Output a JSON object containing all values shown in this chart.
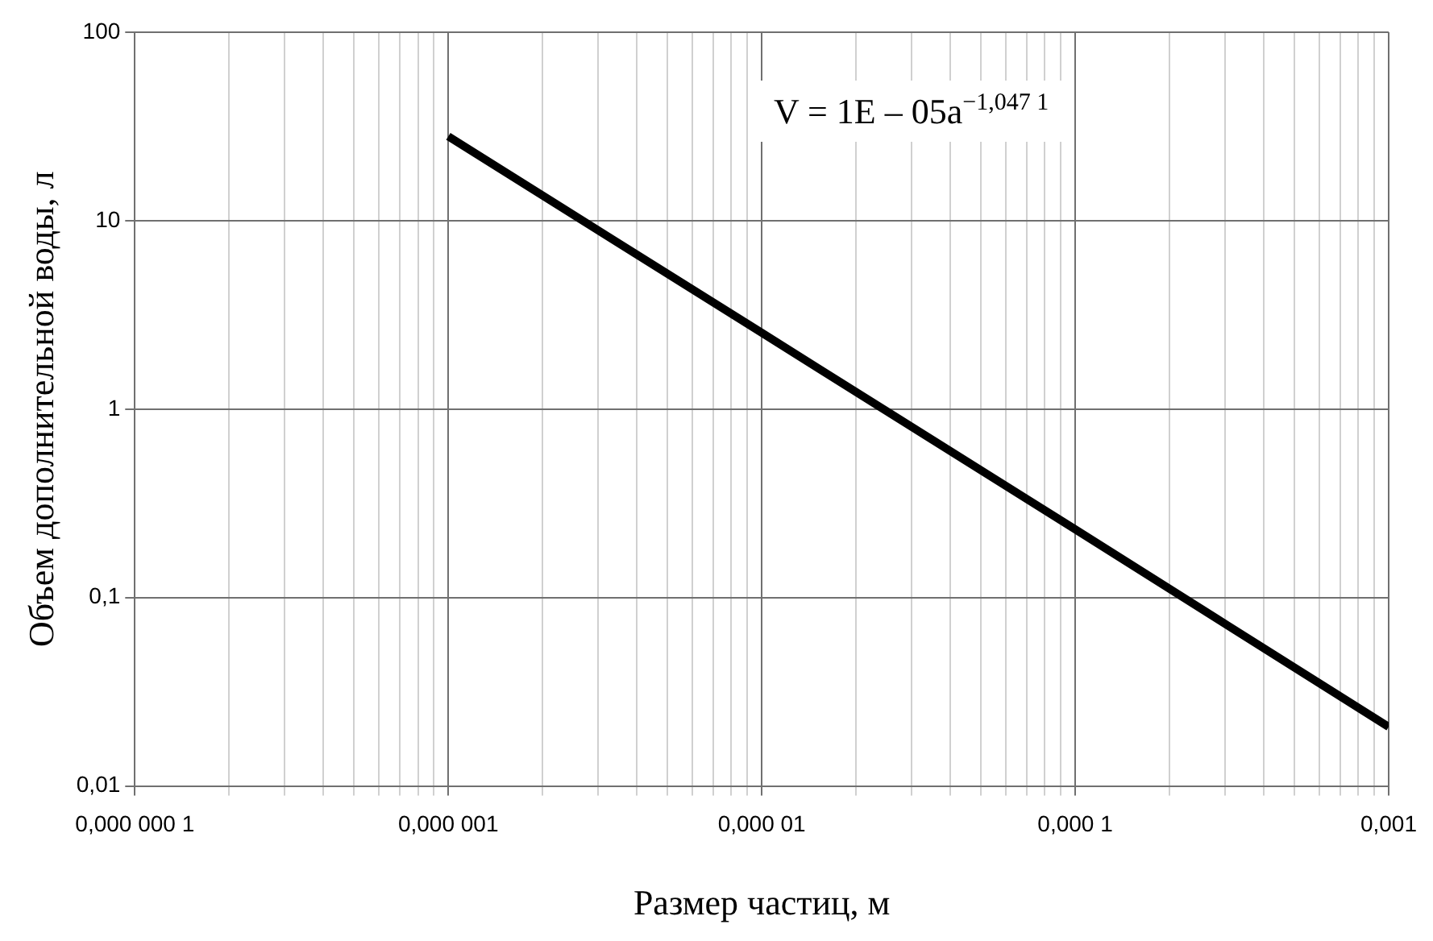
{
  "chart_data": {
    "type": "line",
    "xlabel": "Размер частиц, м",
    "ylabel": "Объем дополнительной воды, л",
    "x": [
      1e-06,
      1e-05,
      0.0001,
      0.001
    ],
    "series": [
      {
        "color": "#000000",
        "values": [
          28,
          2.54,
          0.23,
          0.0206
        ]
      }
    ],
    "log": "xy",
    "grid": true,
    "legend": false,
    "marker": "none",
    "line_style": "solid",
    "xlim": [
      1e-07,
      0.001
    ],
    "xticks": [
      {
        "value": 1e-07,
        "label": "0,000 000 1"
      },
      {
        "value": 2e-07,
        "label": null
      },
      {
        "value": 3e-07,
        "label": null
      },
      {
        "value": 4e-07,
        "label": null
      },
      {
        "value": 5e-07,
        "label": null
      },
      {
        "value": 6e-07,
        "label": null
      },
      {
        "value": 7e-07,
        "label": null
      },
      {
        "value": 8e-07,
        "label": null
      },
      {
        "value": 9e-07,
        "label": null
      },
      {
        "value": 1e-06,
        "label": "0,000 001"
      },
      {
        "value": 2e-06,
        "label": null
      },
      {
        "value": 3e-06,
        "label": null
      },
      {
        "value": 4e-06,
        "label": null
      },
      {
        "value": 5e-06,
        "label": null
      },
      {
        "value": 6e-06,
        "label": null
      },
      {
        "value": 7e-06,
        "label": null
      },
      {
        "value": 8e-06,
        "label": null
      },
      {
        "value": 9e-06,
        "label": null
      },
      {
        "value": 1e-05,
        "label": "0,000 01"
      },
      {
        "value": 2e-05,
        "label": null
      },
      {
        "value": 3e-05,
        "label": null
      },
      {
        "value": 4e-05,
        "label": null
      },
      {
        "value": 5e-05,
        "label": null
      },
      {
        "value": 6e-05,
        "label": null
      },
      {
        "value": 7e-05,
        "label": null
      },
      {
        "value": 8e-05,
        "label": null
      },
      {
        "value": 9e-05,
        "label": null
      },
      {
        "value": 0.0001,
        "label": "0,000 1"
      },
      {
        "value": 0.0002,
        "label": null
      },
      {
        "value": 0.0003,
        "label": null
      },
      {
        "value": 0.0004,
        "label": null
      },
      {
        "value": 0.0005,
        "label": null
      },
      {
        "value": 0.0006,
        "label": null
      },
      {
        "value": 0.0007,
        "label": null
      },
      {
        "value": 0.0008,
        "label": null
      },
      {
        "value": 0.0009,
        "label": null
      },
      {
        "value": 0.001,
        "label": "0,001"
      }
    ],
    "ylim": [
      0.01,
      100
    ],
    "yticks": [
      {
        "value": 0.01,
        "label": "0,01"
      },
      {
        "value": 0.1,
        "label": "0,1"
      },
      1,
      10,
      100
    ],
    "annotations": [
      "V = 1E – 05a$^{−1,047 1}$"
    ]
  }
}
